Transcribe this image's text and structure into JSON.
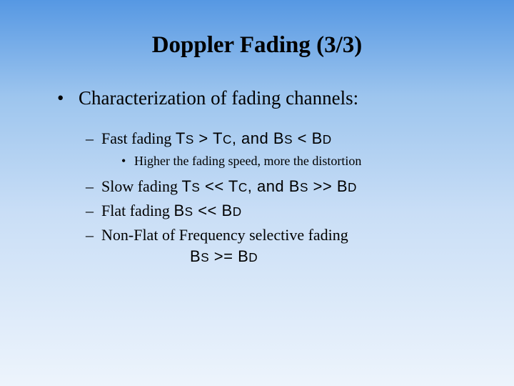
{
  "title": "Doppler Fading (3/3)",
  "level1_text": "Characterization of fading channels:",
  "fast_fading": {
    "prefix": "Fast fading ",
    "t_s": "T",
    "s_sub": "S",
    "gt": " > ",
    "t_c": "T",
    "c_sub": "C",
    "comma_and": ", and ",
    "b_s": "B",
    "s_sub2": "S",
    "lt": " < ",
    "b_d": "B",
    "d_sub": "D"
  },
  "sub_bullet": "Higher the fading speed, more the distortion",
  "slow_fading": {
    "prefix": "Slow fading ",
    "t_s": "T",
    "s_sub": "S",
    "ll": " << ",
    "t_c": "T",
    "c_sub": "C",
    "comma_and": ", and ",
    "b_s": "B",
    "s_sub2": "S",
    "gg": " >> ",
    "b_d": "B",
    "d_sub": "D"
  },
  "flat_fading": {
    "prefix": "Flat fading ",
    "b_s": "B",
    "s_sub": "S",
    "ll": " << ",
    "b_d": "B",
    "d_sub": "D"
  },
  "nonflat": {
    "line1": "Non-Flat of Frequency selective fading",
    "b_s": "B",
    "s_sub": "S",
    "ge": " >= ",
    "b_d": "B",
    "d_sub": "D"
  },
  "colors": {
    "text": "#000000",
    "bg_top": "#5698e3",
    "bg_bottom": "#edf4fc"
  },
  "fontsize": {
    "title": 33,
    "level1": 27,
    "level2": 22,
    "level3": 18
  }
}
